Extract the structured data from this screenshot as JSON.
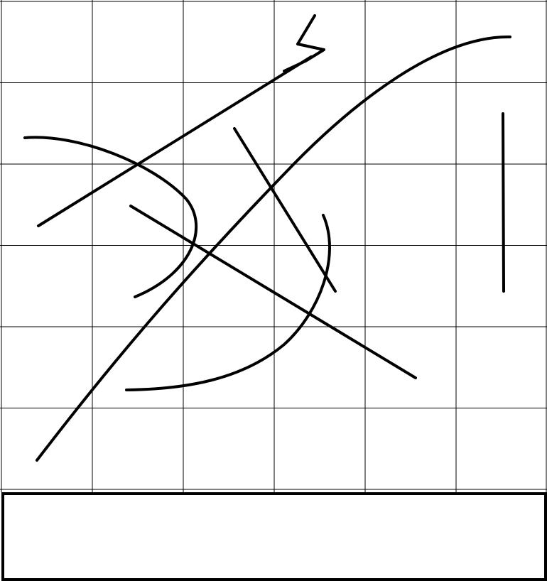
{
  "canvas": {
    "grid_rows": 6,
    "grid_cols": 6,
    "grid_color": "#000000",
    "stroke_color": "#000000",
    "background": "#ffffff"
  },
  "answer_box": {
    "text": "",
    "border_color": "#000000"
  }
}
